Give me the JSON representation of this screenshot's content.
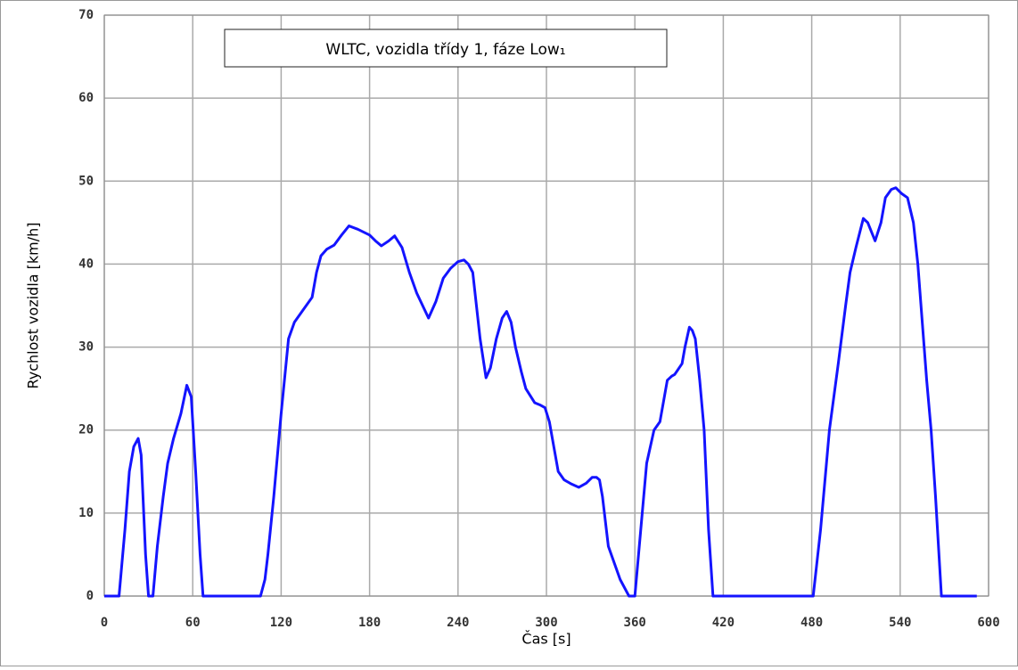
{
  "chart_data": {
    "type": "line",
    "title": "WLTC, vozidla třídy 1, fáze Low₁",
    "x_label": "Čas [s]",
    "y_label": "Rychlost vozidla [km/h]",
    "xlim": [
      0,
      600
    ],
    "ylim": [
      0,
      70
    ],
    "xticks": [
      0,
      60,
      120,
      180,
      240,
      300,
      360,
      420,
      480,
      540,
      600
    ],
    "yticks": [
      0,
      10,
      20,
      30,
      40,
      50,
      60,
      70
    ],
    "grid": true,
    "x": [
      0,
      10,
      14,
      17,
      20,
      23,
      25,
      28,
      30,
      33,
      36,
      40,
      43,
      47,
      52,
      56,
      59,
      62,
      65,
      67,
      106,
      109,
      111,
      115,
      120,
      125,
      129,
      135,
      141,
      144,
      147,
      151,
      156,
      161,
      166,
      172,
      180,
      184,
      188,
      193,
      197,
      202,
      207,
      212,
      220,
      225,
      230,
      235,
      240,
      244,
      247,
      250,
      255,
      259,
      262,
      266,
      270,
      273,
      276,
      279,
      283,
      286,
      292,
      296,
      299,
      302,
      305,
      308,
      312,
      317,
      322,
      327,
      331,
      334,
      336,
      338,
      340,
      342,
      346,
      350,
      356,
      360,
      364,
      368,
      373,
      377,
      380,
      382,
      385,
      387,
      392,
      394,
      397,
      399,
      401,
      404,
      407,
      410,
      413,
      481,
      486,
      492,
      498,
      503,
      506,
      510,
      515,
      518,
      523,
      527,
      530,
      534,
      537,
      541,
      545,
      549,
      552,
      555,
      558,
      561,
      564,
      568,
      592
    ],
    "series": [
      {
        "name": "Rychlost",
        "color": "#1414ff",
        "values": [
          0,
          0,
          8,
          15,
          18,
          19,
          17,
          5,
          0,
          0,
          6,
          12,
          16,
          19,
          22,
          25.4,
          24,
          15,
          5,
          0,
          0,
          2,
          5,
          12,
          22,
          31,
          33,
          34.5,
          36,
          39,
          41,
          41.8,
          42.3,
          43.5,
          44.6,
          44.2,
          43.5,
          42.8,
          42.2,
          42.8,
          43.4,
          42,
          39,
          36.5,
          33.5,
          35.5,
          38.3,
          39.5,
          40.3,
          40.5,
          40,
          39,
          31,
          26.3,
          27.5,
          31,
          33.5,
          34.3,
          33,
          30,
          27,
          25,
          23.3,
          23,
          22.7,
          21,
          18,
          15,
          14,
          13.5,
          13.1,
          13.6,
          14.3,
          14.3,
          14,
          12,
          9,
          6,
          4,
          2,
          0,
          0,
          8,
          16,
          20,
          21,
          24,
          26,
          26.5,
          26.7,
          28,
          30,
          32.4,
          32,
          31,
          26,
          20,
          8,
          0,
          0,
          8,
          20,
          28,
          35,
          39,
          42,
          45.5,
          45,
          42.8,
          45,
          48,
          49,
          49.2,
          48.5,
          48,
          45,
          40,
          33,
          26,
          20,
          12,
          0,
          0
        ]
      }
    ]
  }
}
